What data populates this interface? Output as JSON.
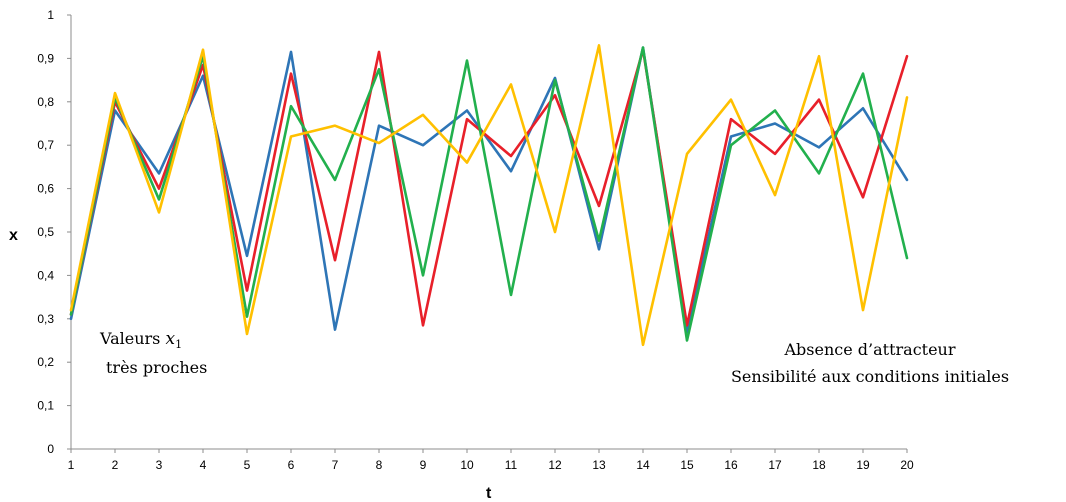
{
  "chart_data": {
    "type": "line",
    "title": "",
    "xlabel": "t",
    "ylabel": "x",
    "x": [
      1,
      2,
      3,
      4,
      5,
      6,
      7,
      8,
      9,
      10,
      11,
      12,
      13,
      14,
      15,
      16,
      17,
      18,
      19,
      20
    ],
    "ylim": [
      0,
      1
    ],
    "xlim": [
      1,
      20
    ],
    "yticks": [
      "0",
      "0,1",
      "0,2",
      "0,3",
      "0,4",
      "0,5",
      "0,6",
      "0,7",
      "0,8",
      "0,9",
      "1"
    ],
    "xticks": [
      "1",
      "2",
      "3",
      "4",
      "5",
      "6",
      "7",
      "8",
      "9",
      "10",
      "11",
      "12",
      "13",
      "14",
      "15",
      "16",
      "17",
      "18",
      "19",
      "20"
    ],
    "grid": false,
    "legend": "none",
    "series": [
      {
        "color": "#2e75b6",
        "values": [
          0.3,
          0.78,
          0.635,
          0.86,
          0.445,
          0.915,
          0.275,
          0.745,
          0.7,
          0.78,
          0.64,
          0.855,
          0.46,
          0.925,
          0.27,
          0.72,
          0.75,
          0.695,
          0.785,
          0.62
        ]
      },
      {
        "color": "#e8202a",
        "values": [
          0.31,
          0.8,
          0.6,
          0.885,
          0.365,
          0.865,
          0.435,
          0.915,
          0.285,
          0.76,
          0.675,
          0.815,
          0.56,
          0.92,
          0.285,
          0.76,
          0.68,
          0.805,
          0.58,
          0.905
        ]
      },
      {
        "color": "#22b04d",
        "values": [
          0.31,
          0.81,
          0.575,
          0.905,
          0.305,
          0.79,
          0.62,
          0.875,
          0.4,
          0.895,
          0.355,
          0.85,
          0.48,
          0.925,
          0.25,
          0.7,
          0.78,
          0.635,
          0.865,
          0.44
        ]
      },
      {
        "color": "#ffc000",
        "values": [
          0.32,
          0.82,
          0.545,
          0.92,
          0.265,
          0.72,
          0.745,
          0.705,
          0.77,
          0.66,
          0.84,
          0.5,
          0.93,
          0.24,
          0.68,
          0.805,
          0.585,
          0.905,
          0.32,
          0.81
        ]
      }
    ],
    "annotations": {
      "left_line1": "Valeurs ",
      "left_math_var": "x",
      "left_math_sub": "1",
      "left_line2": "très proches",
      "right_line1": "Absence d’attracteur",
      "right_line2": "Sensibilité aux conditions initiales"
    }
  }
}
